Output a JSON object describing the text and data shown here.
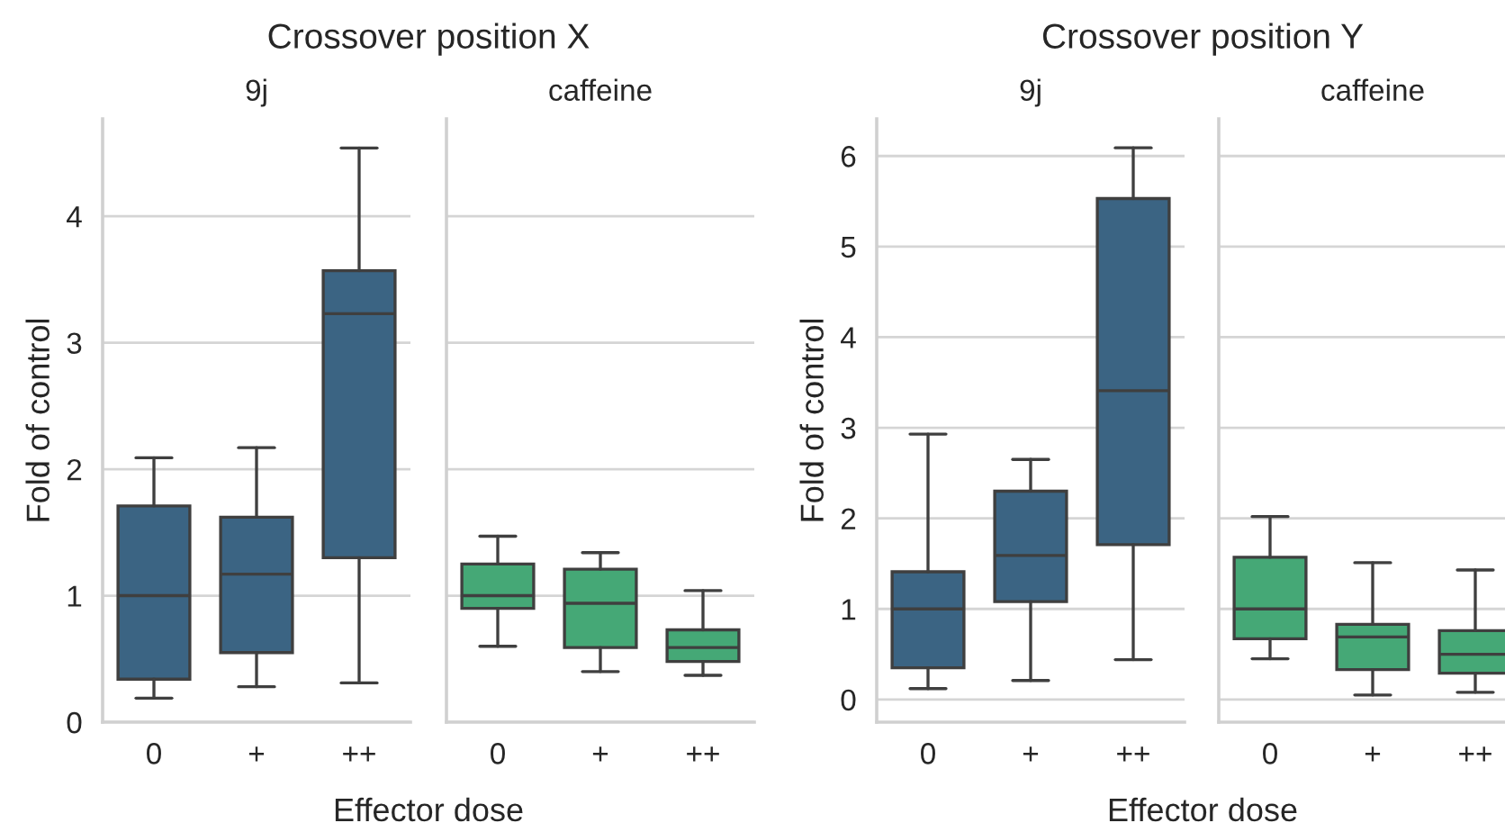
{
  "chart_data": [
    {
      "type": "box",
      "title": "Crossover position X",
      "subtitle": "9j",
      "xlabel": "Effector dose",
      "ylabel": "Fold of control",
      "categories": [
        "0",
        "+",
        "++"
      ],
      "color": "#3b6483",
      "ylim": [
        0,
        4.77
      ],
      "yticks": [
        0,
        1,
        2,
        3,
        4
      ],
      "grid": "y",
      "boxes": [
        {
          "low": 0.19,
          "q1": 0.34,
          "median": 1.0,
          "q3": 1.71,
          "high": 2.09
        },
        {
          "low": 0.28,
          "q1": 0.55,
          "median": 1.17,
          "q3": 1.62,
          "high": 2.17
        },
        {
          "low": 0.31,
          "q1": 1.3,
          "median": 3.23,
          "q3": 3.57,
          "high": 4.54
        }
      ]
    },
    {
      "type": "box",
      "subtitle": "caffeine",
      "categories": [
        "0",
        "+",
        "++"
      ],
      "color": "#45a876",
      "ylim": [
        0,
        4.77
      ],
      "yticks": [
        0,
        1,
        2,
        3,
        4
      ],
      "grid": "y",
      "tick_labels": "x",
      "boxes": [
        {
          "low": 0.6,
          "q1": 0.9,
          "median": 1.0,
          "q3": 1.25,
          "high": 1.47
        },
        {
          "low": 0.4,
          "q1": 0.59,
          "median": 0.94,
          "q3": 1.21,
          "high": 1.34
        },
        {
          "low": 0.37,
          "q1": 0.48,
          "median": 0.59,
          "q3": 0.73,
          "high": 1.04
        }
      ]
    },
    {
      "type": "box",
      "title": "Crossover position Y",
      "subtitle": "9j",
      "xlabel": "Effector dose",
      "ylabel": "Fold of control",
      "categories": [
        "0",
        "+",
        "++"
      ],
      "color": "#3b6483",
      "ylim": [
        -0.25,
        6.41
      ],
      "yticks": [
        0,
        1,
        2,
        3,
        4,
        5,
        6
      ],
      "grid": "y",
      "boxes": [
        {
          "low": 0.12,
          "q1": 0.35,
          "median": 1.0,
          "q3": 1.41,
          "high": 2.93
        },
        {
          "low": 0.21,
          "q1": 1.08,
          "median": 1.59,
          "q3": 2.3,
          "high": 2.65
        },
        {
          "low": 0.44,
          "q1": 1.71,
          "median": 3.41,
          "q3": 5.53,
          "high": 6.09
        }
      ]
    },
    {
      "type": "box",
      "subtitle": "caffeine",
      "categories": [
        "0",
        "+",
        "++"
      ],
      "color": "#45a876",
      "ylim": [
        -0.25,
        6.41
      ],
      "yticks": [
        0,
        1,
        2,
        3,
        4,
        5,
        6
      ],
      "grid": "y",
      "tick_labels": "x",
      "boxes": [
        {
          "low": 0.45,
          "q1": 0.67,
          "median": 1.0,
          "q3": 1.57,
          "high": 2.02
        },
        {
          "low": 0.05,
          "q1": 0.33,
          "median": 0.69,
          "q3": 0.83,
          "high": 1.51
        },
        {
          "low": 0.08,
          "q1": 0.29,
          "median": 0.5,
          "q3": 0.76,
          "high": 1.43
        }
      ]
    }
  ]
}
